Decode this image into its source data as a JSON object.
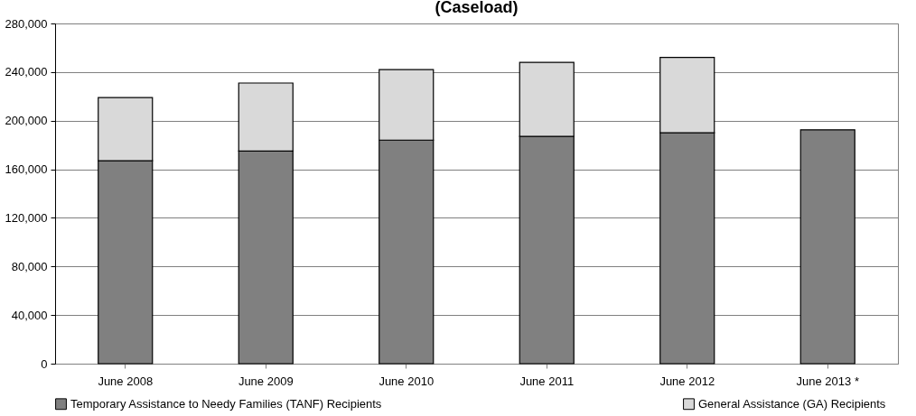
{
  "chart_data": {
    "type": "bar",
    "title": "(Caseload)",
    "categories": [
      "June 2008",
      "June 2009",
      "June 2010",
      "June 2011",
      "June 2012",
      "June 2013 *"
    ],
    "stacked": true,
    "series": [
      {
        "name": "Temporary Assistance to Needy Families (TANF) Recipients",
        "color": "#808080",
        "values": [
          167000,
          175000,
          184000,
          187000,
          190000,
          192500
        ]
      },
      {
        "name": "General Assistance (GA) Recipients",
        "color": "#d9d9d9",
        "values": [
          52000,
          56000,
          58000,
          61000,
          62000,
          null
        ]
      }
    ],
    "ylim": [
      0,
      280000
    ],
    "yticks": [
      0,
      {
        "value": 40000,
        "label": "40,000"
      },
      {
        "value": 80000,
        "label": "80,000"
      },
      {
        "value": 120000,
        "label": "120,000"
      },
      {
        "value": 160000,
        "label": "160,000"
      },
      {
        "value": 200000,
        "label": "200,000"
      },
      {
        "value": 240000,
        "label": "240,000"
      },
      {
        "value": 280000,
        "label": "280,000"
      }
    ],
    "grid": "y",
    "legend": "bottom"
  }
}
